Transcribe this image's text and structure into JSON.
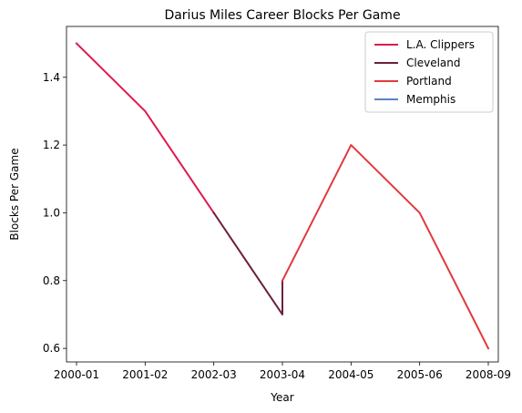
{
  "chart_data": {
    "type": "line",
    "title": "Darius Miles Career Blocks Per Game",
    "xlabel": "Year",
    "ylabel": "Blocks Per Game",
    "categories": [
      "2000-01",
      "2001-02",
      "2002-03",
      "2003-04",
      "2004-05",
      "2005-06",
      "2008-09"
    ],
    "ylim": [
      0.56,
      1.55
    ],
    "yticks": [
      0.6,
      0.8,
      1.0,
      1.2,
      1.4
    ],
    "ytick_labels": [
      "0.6",
      "0.8",
      "1.0",
      "1.2",
      "1.4"
    ],
    "grid": false,
    "legend_position": "top-right",
    "series": [
      {
        "name": "L.A. Clippers",
        "color": "#e0194e",
        "points": [
          {
            "x": "2000-01",
            "y": 1.5
          },
          {
            "x": "2001-02",
            "y": 1.3
          },
          {
            "x": "2002-03",
            "y": 1.0
          }
        ]
      },
      {
        "name": "Cleveland",
        "color": "#6b2040",
        "points": [
          {
            "x": "2002-03",
            "y": 1.0
          },
          {
            "x": "2003-04",
            "y": 0.7
          },
          {
            "x": "2003-04",
            "y": 0.8
          }
        ]
      },
      {
        "name": "Portland",
        "color": "#e0393e",
        "points": [
          {
            "x": "2003-04",
            "y": 0.8
          },
          {
            "x": "2004-05",
            "y": 1.2
          },
          {
            "x": "2005-06",
            "y": 1.0
          },
          {
            "x": "2008-09",
            "y": 0.6
          }
        ]
      },
      {
        "name": "Memphis",
        "color": "#5b84c4",
        "points": []
      }
    ]
  }
}
